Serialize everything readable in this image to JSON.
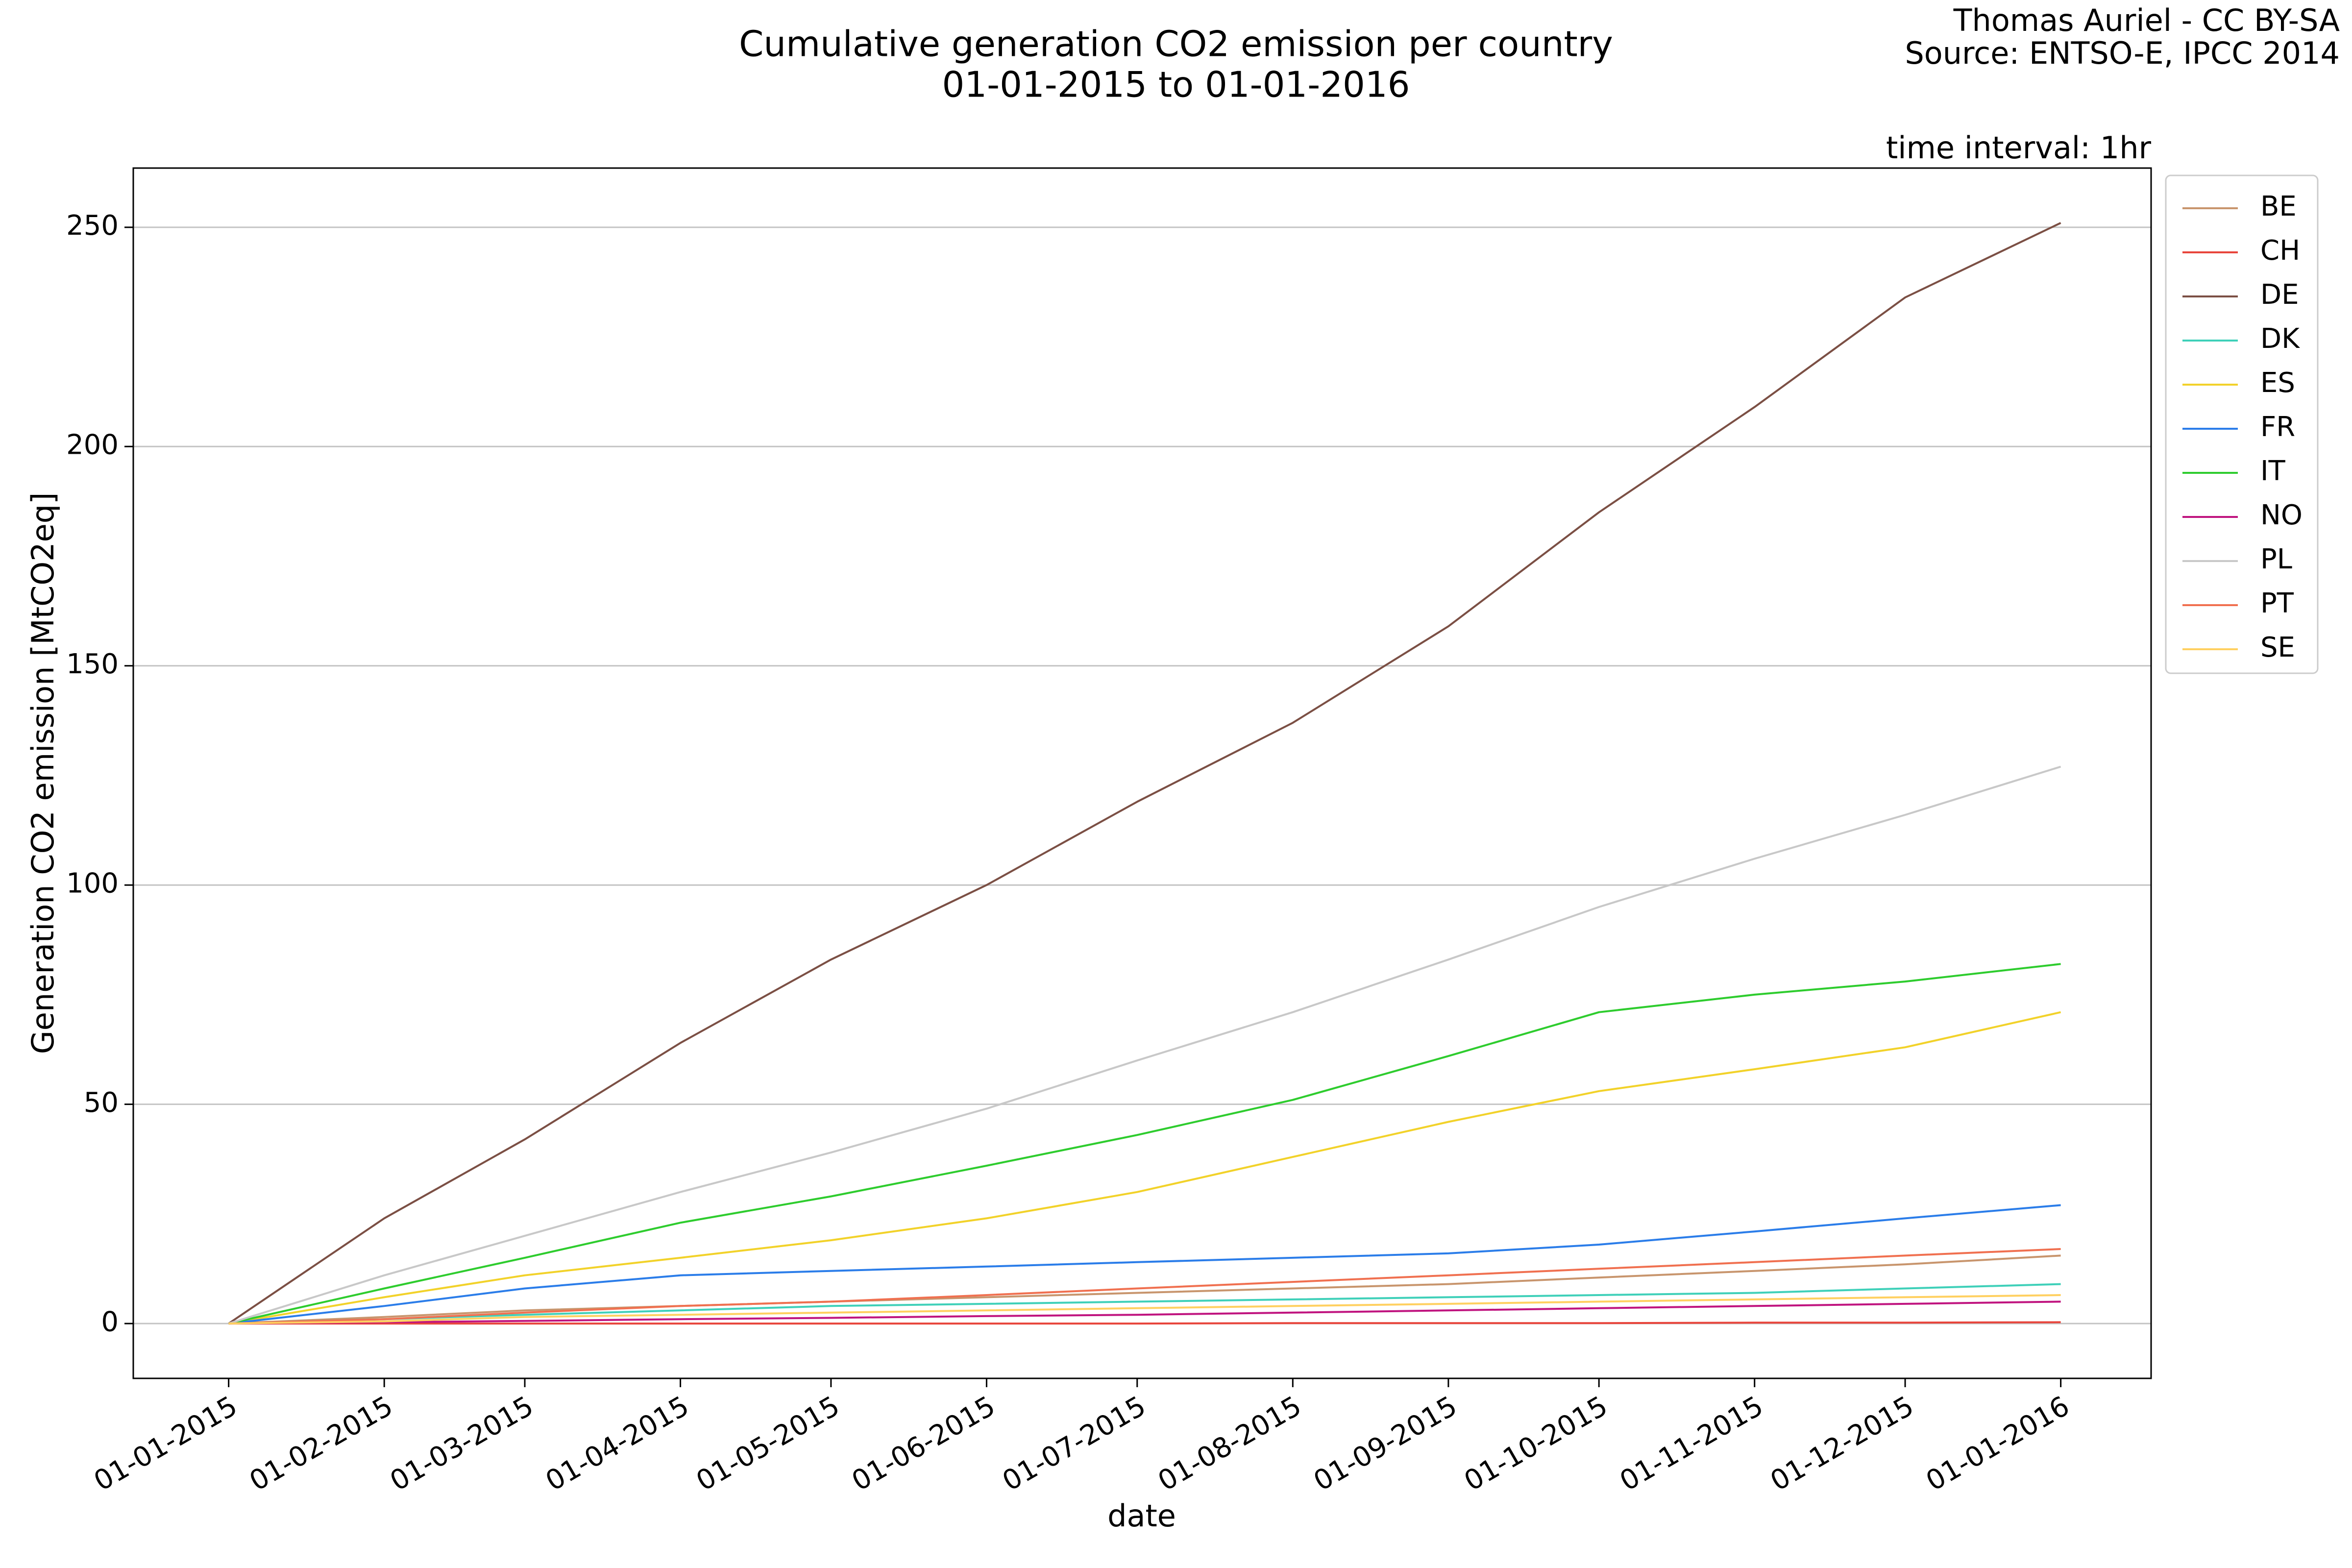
{
  "chart_data": {
    "type": "line",
    "title": "Cumulative generation CO2 emission per country",
    "subtitle": "01-01-2015 to 01-01-2016",
    "credits": [
      "Thomas Auriel - CC BY-SA",
      "Source: ENTSO-E, IPCC 2014"
    ],
    "annotation": "time interval: 1hr",
    "x_label": "date",
    "y_label": "Generation CO2 emission [MtCO2eq]",
    "x": [
      "01-01-2015",
      "01-02-2015",
      "01-03-2015",
      "01-04-2015",
      "01-05-2015",
      "01-06-2015",
      "01-07-2015",
      "01-08-2015",
      "01-09-2015",
      "01-10-2015",
      "01-11-2015",
      "01-12-2015",
      "01-01-2016"
    ],
    "xlim": [
      "13-12-2014",
      "19-01-2016"
    ],
    "xticks": [
      "01-01-2015",
      "01-02-2015",
      "01-03-2015",
      "01-04-2015",
      "01-05-2015",
      "01-06-2015",
      "01-07-2015",
      "01-08-2015",
      "01-09-2015",
      "01-10-2015",
      "01-11-2015",
      "01-12-2015",
      "01-01-2016"
    ],
    "ylim": [
      -12.5,
      263.5
    ],
    "yticks": [
      0,
      50,
      100,
      150,
      200,
      250
    ],
    "grid": true,
    "legend": "outside-upper-right",
    "series": [
      {
        "name": "BE",
        "color": "#c8956d",
        "values": [
          0,
          1.5,
          3,
          4,
          5,
          6,
          7,
          8,
          9,
          10.5,
          12,
          13.5,
          15.5
        ]
      },
      {
        "name": "CH",
        "color": "#e8453c",
        "values": [
          0,
          0,
          0,
          0,
          0,
          0,
          0,
          0.1,
          0.1,
          0.1,
          0.2,
          0.2,
          0.3
        ]
      },
      {
        "name": "DE",
        "color": "#7b4f44",
        "values": [
          0,
          24,
          42,
          64,
          83,
          100,
          119,
          137,
          159,
          185,
          209,
          234,
          251
        ]
      },
      {
        "name": "DK",
        "color": "#3fd0b9",
        "values": [
          0,
          1,
          2,
          3,
          4,
          4.5,
          5,
          5.5,
          6,
          6.5,
          7,
          8,
          9
        ]
      },
      {
        "name": "ES",
        "color": "#f2d22a",
        "values": [
          0,
          6,
          11,
          15,
          19,
          24,
          30,
          38,
          46,
          53,
          58,
          63,
          71
        ]
      },
      {
        "name": "FR",
        "color": "#2b7de9",
        "values": [
          0,
          4,
          8,
          11,
          12,
          13,
          14,
          15,
          16,
          18,
          21,
          24,
          27
        ]
      },
      {
        "name": "IT",
        "color": "#2ecc2e",
        "values": [
          0,
          8,
          15,
          23,
          29,
          36,
          43,
          51,
          61,
          71,
          75,
          78,
          82
        ]
      },
      {
        "name": "NO",
        "color": "#c0147f",
        "values": [
          0,
          0.3,
          0.6,
          1,
          1.3,
          1.7,
          2,
          2.5,
          3,
          3.5,
          4,
          4.5,
          5
        ]
      },
      {
        "name": "PL",
        "color": "#c8c8c8",
        "values": [
          0,
          11,
          20,
          30,
          39,
          49,
          60,
          71,
          83,
          95,
          106,
          116,
          127
        ]
      },
      {
        "name": "PT",
        "color": "#f07050",
        "values": [
          0,
          1,
          2.5,
          4,
          5,
          6.5,
          8,
          9.5,
          11,
          12.5,
          14,
          15.5,
          17
        ]
      },
      {
        "name": "SE",
        "color": "#ffd060",
        "values": [
          0,
          0.5,
          1.5,
          2,
          2.5,
          3,
          3.5,
          4,
          4.5,
          5,
          5.5,
          6,
          6.5
        ]
      }
    ]
  }
}
